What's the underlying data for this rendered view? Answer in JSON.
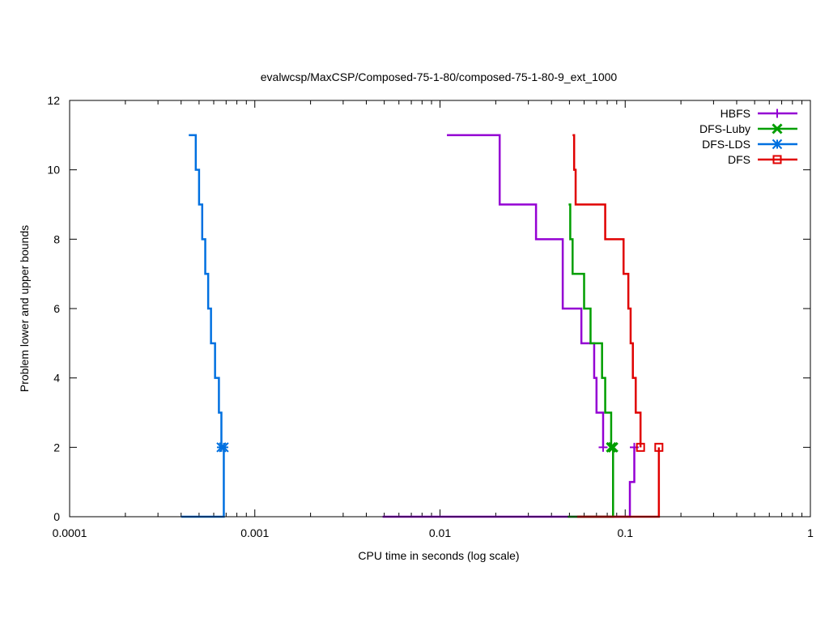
{
  "chart_data": {
    "type": "line",
    "title": "evalwcsp/MaxCSP/Composed-75-1-80/composed-75-1-80-9_ext_1000",
    "xlabel": "CPU time in seconds (log scale)",
    "ylabel": "Problem lower and upper bounds",
    "x_scale": "log",
    "xlim": [
      0.0001,
      1
    ],
    "ylim": [
      0,
      12
    ],
    "x_ticks": [
      {
        "value": 0.0001,
        "label": "0.0001"
      },
      {
        "value": 0.001,
        "label": "0.001"
      },
      {
        "value": 0.01,
        "label": "0.01"
      },
      {
        "value": 0.1,
        "label": "0.1"
      },
      {
        "value": 1,
        "label": "1"
      }
    ],
    "y_ticks": [
      {
        "value": 0,
        "label": "0"
      },
      {
        "value": 2,
        "label": "2"
      },
      {
        "value": 4,
        "label": "4"
      },
      {
        "value": 6,
        "label": "6"
      },
      {
        "value": 8,
        "label": "8"
      },
      {
        "value": 10,
        "label": "10"
      },
      {
        "value": 12,
        "label": "12"
      }
    ],
    "legend_position": "top-right",
    "series": [
      {
        "name": "HBFS",
        "color": "#9400d3",
        "marker": "plus",
        "upper": [
          [
            0.0109,
            11
          ],
          [
            0.021,
            9
          ],
          [
            0.033,
            8
          ],
          [
            0.046,
            6
          ],
          [
            0.058,
            5
          ],
          [
            0.068,
            4
          ],
          [
            0.07,
            3
          ],
          [
            0.076,
            2
          ]
        ],
        "lower": [
          [
            0.0049,
            0
          ],
          [
            0.103,
            0
          ],
          [
            0.106,
            1
          ],
          [
            0.112,
            2
          ]
        ],
        "marker_points": [
          [
            0.076,
            2
          ],
          [
            0.112,
            2
          ]
        ]
      },
      {
        "name": "DFS-Luby",
        "color": "#009e00",
        "marker": "cross",
        "upper": [
          [
            0.0495,
            9
          ],
          [
            0.0505,
            8
          ],
          [
            0.052,
            7
          ],
          [
            0.06,
            6
          ],
          [
            0.065,
            5
          ],
          [
            0.075,
            4
          ],
          [
            0.078,
            3
          ],
          [
            0.084,
            2
          ]
        ],
        "lower": [
          [
            0.049,
            0
          ],
          [
            0.086,
            0
          ],
          [
            0.086,
            2
          ]
        ],
        "marker_points": [
          [
            0.084,
            2
          ],
          [
            0.086,
            2
          ]
        ]
      },
      {
        "name": "DFS-LDS",
        "color": "#0070e0",
        "marker": "star",
        "upper": [
          [
            0.00044,
            11
          ],
          [
            0.00048,
            10
          ],
          [
            0.0005,
            9
          ],
          [
            0.00052,
            8
          ],
          [
            0.00054,
            7
          ],
          [
            0.00056,
            6
          ],
          [
            0.00058,
            5
          ],
          [
            0.00061,
            4
          ],
          [
            0.00064,
            3
          ],
          [
            0.00066,
            2
          ]
        ],
        "lower": [
          [
            0.0004,
            0
          ],
          [
            0.00068,
            0
          ],
          [
            0.00068,
            2
          ]
        ],
        "marker_points": [
          [
            0.00066,
            2
          ],
          [
            0.00068,
            2
          ]
        ]
      },
      {
        "name": "DFS",
        "color": "#e00000",
        "marker": "square",
        "upper": [
          [
            0.052,
            11
          ],
          [
            0.053,
            10
          ],
          [
            0.054,
            9
          ],
          [
            0.078,
            8
          ],
          [
            0.098,
            7
          ],
          [
            0.104,
            6
          ],
          [
            0.107,
            5
          ],
          [
            0.11,
            4
          ],
          [
            0.114,
            3
          ],
          [
            0.121,
            2
          ]
        ],
        "lower": [
          [
            0.055,
            0
          ],
          [
            0.152,
            0
          ],
          [
            0.152,
            2
          ]
        ],
        "marker_points": [
          [
            0.121,
            2
          ],
          [
            0.152,
            2
          ]
        ]
      }
    ]
  }
}
